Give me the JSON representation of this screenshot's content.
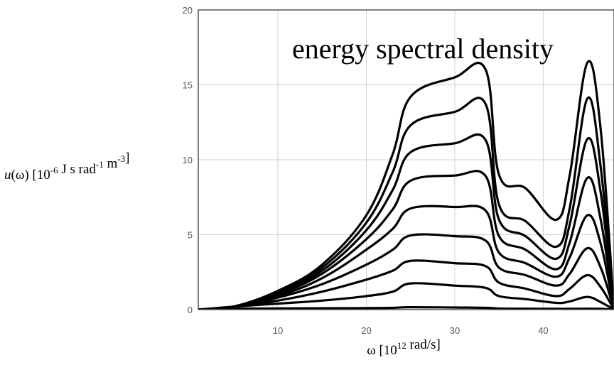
{
  "chart_data": {
    "type": "line",
    "title": "energy spectral density",
    "xlabel": "ω [10^12 rad/s]",
    "ylabel": "u(ω) [10^-6 J s rad^-1 m^-3]",
    "xlim": [
      1,
      48
    ],
    "ylim": [
      0,
      20
    ],
    "grid": true,
    "xticks": [
      "10",
      "20",
      "30",
      "40"
    ],
    "yticks": [
      "0",
      "5",
      "10",
      "15",
      "20"
    ],
    "x": [
      1,
      5,
      10,
      15,
      20,
      23,
      25,
      30,
      33.5,
      35,
      38,
      41.5,
      43,
      45,
      46.5,
      48
    ],
    "series": [
      {
        "values": [
          0,
          0.06,
          0.08,
          0.09,
          0.1,
          0.12,
          0.16,
          0.14,
          0.12,
          0.07,
          0.06,
          0.05,
          0.05,
          0.06,
          0.05,
          0
        ]
      },
      {
        "values": [
          0,
          0.2,
          0.4,
          0.6,
          0.9,
          1.2,
          1.75,
          1.6,
          1.45,
          0.9,
          0.7,
          0.45,
          0.55,
          0.85,
          0.5,
          0
        ]
      },
      {
        "values": [
          0,
          0.2,
          0.6,
          1.2,
          2.0,
          2.6,
          3.25,
          3.1,
          2.9,
          1.8,
          1.4,
          0.9,
          1.4,
          2.3,
          1.5,
          0
        ]
      },
      {
        "values": [
          0,
          0.2,
          0.8,
          1.7,
          3.0,
          4.0,
          4.95,
          4.9,
          4.6,
          2.8,
          2.3,
          1.6,
          2.4,
          4.1,
          2.8,
          0
        ]
      },
      {
        "values": [
          0,
          0.2,
          0.9,
          2.1,
          4.0,
          5.4,
          6.75,
          6.85,
          6.6,
          3.8,
          3.1,
          2.2,
          3.5,
          6.3,
          4.4,
          0
        ]
      },
      {
        "values": [
          0,
          0.2,
          1.0,
          2.4,
          4.7,
          6.7,
          8.6,
          8.95,
          8.9,
          4.9,
          4.0,
          2.7,
          4.5,
          8.8,
          6.0,
          0
        ]
      },
      {
        "values": [
          0,
          0.2,
          1.1,
          2.6,
          5.3,
          8.0,
          10.5,
          11.1,
          11.3,
          6.0,
          4.9,
          3.4,
          5.7,
          11.4,
          7.8,
          0
        ]
      },
      {
        "values": [
          0,
          0.2,
          1.2,
          2.8,
          5.8,
          9.2,
          12.3,
          13.2,
          13.7,
          7.0,
          5.9,
          4.2,
          6.8,
          14.1,
          9.5,
          0
        ]
      },
      {
        "values": [
          0,
          0.2,
          1.25,
          3.0,
          6.3,
          10.4,
          14.2,
          15.5,
          16.0,
          9.0,
          8.1,
          6.0,
          9.0,
          16.5,
          12.0,
          0
        ]
      }
    ]
  }
}
